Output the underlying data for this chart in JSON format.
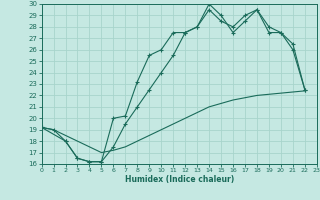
{
  "title": "",
  "xlabel": "Humidex (Indice chaleur)",
  "bg_color": "#c5e8e2",
  "line_color": "#1a6b5a",
  "grid_color": "#a8d4cc",
  "xlim": [
    0,
    23
  ],
  "ylim": [
    16,
    30
  ],
  "xticks": [
    0,
    1,
    2,
    3,
    4,
    5,
    6,
    7,
    8,
    9,
    10,
    11,
    12,
    13,
    14,
    15,
    16,
    17,
    18,
    19,
    20,
    21,
    22,
    23
  ],
  "yticks": [
    16,
    17,
    18,
    19,
    20,
    21,
    22,
    23,
    24,
    25,
    26,
    27,
    28,
    29,
    30
  ],
  "curve1_x": [
    0,
    1,
    2,
    3,
    4,
    5,
    6,
    7,
    8,
    9,
    10,
    11,
    12,
    13,
    14,
    15,
    16,
    17,
    18,
    19,
    20,
    21,
    22
  ],
  "curve1_y": [
    19.2,
    19.0,
    18.0,
    16.5,
    16.2,
    16.2,
    20.0,
    20.2,
    23.2,
    25.5,
    26.0,
    27.5,
    27.5,
    28.0,
    30.0,
    29.0,
    27.5,
    28.5,
    29.5,
    27.5,
    27.5,
    26.5,
    22.5
  ],
  "curve2_x": [
    0,
    2,
    3,
    4,
    5,
    6,
    7,
    8,
    9,
    10,
    11,
    12,
    13,
    14,
    15,
    16,
    17,
    18,
    19,
    20,
    21,
    22
  ],
  "curve2_y": [
    19.2,
    18.0,
    16.5,
    16.2,
    16.2,
    17.5,
    19.5,
    21.0,
    22.5,
    24.0,
    25.5,
    27.5,
    28.0,
    29.5,
    28.5,
    28.0,
    29.0,
    29.5,
    28.0,
    27.5,
    26.0,
    22.5
  ],
  "curve3_x": [
    0,
    1,
    2,
    3,
    4,
    5,
    6,
    7,
    8,
    9,
    10,
    11,
    12,
    13,
    14,
    15,
    16,
    17,
    18,
    19,
    20,
    21,
    22
  ],
  "curve3_y": [
    19.2,
    19.0,
    18.5,
    18.0,
    17.5,
    17.0,
    17.2,
    17.5,
    18.0,
    18.5,
    19.0,
    19.5,
    20.0,
    20.5,
    21.0,
    21.3,
    21.6,
    21.8,
    22.0,
    22.1,
    22.2,
    22.3,
    22.4
  ]
}
